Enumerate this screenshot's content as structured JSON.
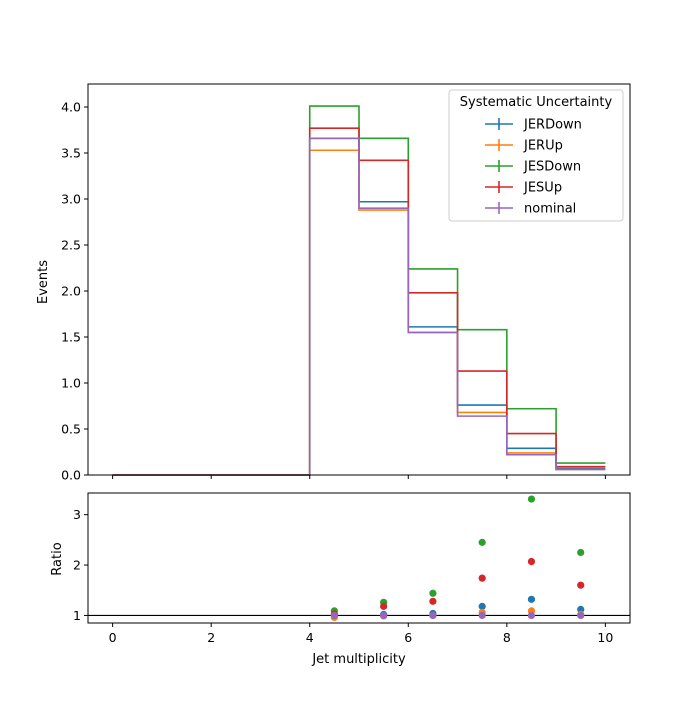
{
  "chart_data": [
    {
      "type": "step",
      "panel": "main",
      "xlabel": "",
      "ylabel": "Events",
      "xlim": [
        -0.5,
        10.5
      ],
      "ylim": [
        0,
        4.25
      ],
      "xticks": [
        0,
        2,
        4,
        6,
        8,
        10
      ],
      "yticks": [
        "0.0",
        "0.5",
        "1.0",
        "1.5",
        "2.0",
        "2.5",
        "3.0",
        "3.5",
        "4.0"
      ],
      "bin_edges": [
        0,
        1,
        2,
        3,
        4,
        5,
        6,
        7,
        8,
        9,
        10
      ],
      "legend_title": "Systematic Uncertainty",
      "legend_position": "upper right",
      "series": [
        {
          "name": "JERDown",
          "color": "#1f77b4",
          "values": [
            0,
            0,
            0,
            0,
            3.66,
            2.97,
            1.61,
            0.76,
            0.29,
            0.07
          ]
        },
        {
          "name": "JERUp",
          "color": "#ff7f0e",
          "values": [
            0,
            0,
            0,
            0,
            3.53,
            2.88,
            1.55,
            0.68,
            0.24,
            0.06
          ]
        },
        {
          "name": "JESDown",
          "color": "#2ca02c",
          "values": [
            0,
            0,
            0,
            0,
            4.01,
            3.66,
            2.24,
            1.58,
            0.72,
            0.13
          ]
        },
        {
          "name": "JESUp",
          "color": "#d62728",
          "values": [
            0,
            0,
            0,
            0,
            3.77,
            3.42,
            1.98,
            1.13,
            0.45,
            0.09
          ]
        },
        {
          "name": "nominal",
          "color": "#9467bd",
          "values": [
            0,
            0,
            0,
            0,
            3.66,
            2.9,
            1.55,
            0.64,
            0.22,
            0.06
          ]
        }
      ]
    },
    {
      "type": "scatter",
      "panel": "ratio",
      "xlabel": "Jet multiplicity",
      "ylabel": "Ratio",
      "xlim": [
        -0.5,
        10.5
      ],
      "ylim": [
        0.85,
        3.43
      ],
      "xticks": [
        0,
        2,
        4,
        6,
        8,
        10
      ],
      "yticks": [
        1,
        2,
        3
      ],
      "reference_line": 1,
      "x": [
        4.5,
        5.5,
        6.5,
        7.5,
        8.5,
        9.5
      ],
      "series": [
        {
          "name": "JERDown",
          "color": "#1f77b4",
          "values": [
            1.0,
            1.02,
            1.04,
            1.18,
            1.32,
            1.12
          ]
        },
        {
          "name": "JERUp",
          "color": "#ff7f0e",
          "values": [
            0.96,
            0.99,
            1.0,
            1.06,
            1.09,
            1.02
          ]
        },
        {
          "name": "JESDown",
          "color": "#2ca02c",
          "values": [
            1.09,
            1.26,
            1.44,
            2.45,
            3.31,
            2.25
          ]
        },
        {
          "name": "JESUp",
          "color": "#d62728",
          "values": [
            1.03,
            1.18,
            1.28,
            1.74,
            2.07,
            1.6
          ]
        },
        {
          "name": "nominal",
          "color": "#9467bd",
          "values": [
            1.0,
            1.0,
            1.0,
            1.0,
            1.0,
            1.0
          ]
        }
      ]
    }
  ]
}
